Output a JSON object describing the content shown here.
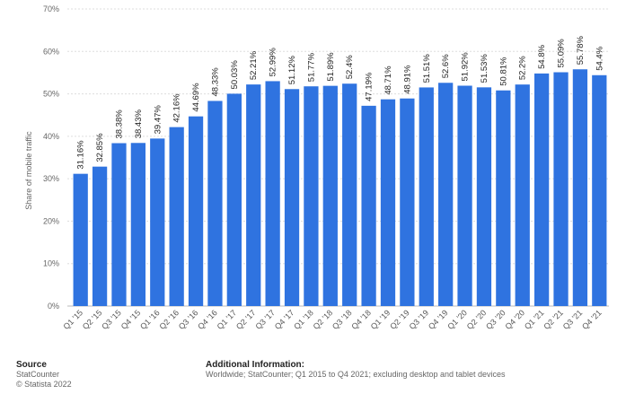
{
  "chart_data": {
    "type": "bar",
    "title": "",
    "xlabel": "",
    "ylabel": "Share of mobile traffic",
    "ylim": [
      0,
      70
    ],
    "yticks": [
      "0%",
      "10%",
      "20%",
      "30%",
      "40%",
      "50%",
      "60%",
      "70%"
    ],
    "grid": true,
    "bar_color": "#2f73e0",
    "categories": [
      "Q1 '15",
      "Q2 '15",
      "Q3 '15",
      "Q4 '15",
      "Q1 '16",
      "Q2 '16",
      "Q3 '16",
      "Q4 '16",
      "Q1 '17",
      "Q2 '17",
      "Q3 '17",
      "Q4 '17",
      "Q1 '18",
      "Q2 '18",
      "Q3 '18",
      "Q4 '18",
      "Q1 '19",
      "Q2 '19",
      "Q3 '19",
      "Q4 '19",
      "Q1 '20",
      "Q2 '20",
      "Q3 '20",
      "Q4 '20",
      "Q1 '21",
      "Q2 '21",
      "Q3 '21",
      "Q4 '21"
    ],
    "values": [
      31.16,
      32.85,
      38.38,
      38.43,
      39.47,
      42.16,
      44.69,
      48.33,
      50.03,
      52.21,
      52.99,
      51.12,
      51.77,
      51.89,
      52.4,
      47.19,
      48.71,
      48.91,
      51.51,
      52.6,
      51.92,
      51.53,
      50.81,
      52.2,
      54.8,
      55.09,
      55.78,
      54.4
    ],
    "value_labels": [
      "31.16%",
      "32.85%",
      "38.38%",
      "38.43%",
      "39.47%",
      "42.16%",
      "44.69%",
      "48.33%",
      "50.03%",
      "52.21%",
      "52.99%",
      "51.12%",
      "51.77%",
      "51.89%",
      "52.4%",
      "47.19%",
      "48.71%",
      "48.91%",
      "51.51%",
      "52.6%",
      "51.92%",
      "51.53%",
      "50.81%",
      "52.2%",
      "54.8%",
      "55.09%",
      "55.78%",
      "54.4%"
    ]
  },
  "footer": {
    "source_heading": "Source",
    "source_name": "StatCounter",
    "copyright": "© Statista 2022",
    "info_heading": "Additional Information:",
    "info_text": "Worldwide; StatCounter; Q1 2015 to Q4 2021; excluding desktop and tablet devices"
  }
}
